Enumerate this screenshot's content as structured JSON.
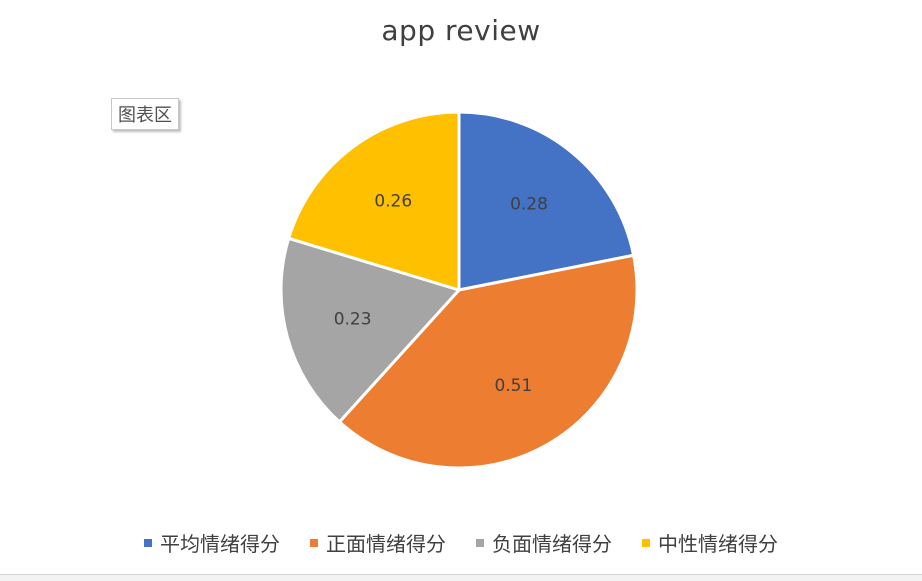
{
  "tooltip": {
    "label": "图表区"
  },
  "chart_data": {
    "type": "pie",
    "title": "app review",
    "categories": [
      "平均情绪得分",
      "正面情绪得分",
      "负面情绪得分",
      "中性情绪得分"
    ],
    "values": [
      0.28,
      0.51,
      0.23,
      0.26
    ],
    "value_labels": [
      "0.28",
      "0.51",
      "0.23",
      "0.26"
    ],
    "colors": [
      "#4472C4",
      "#ED7D31",
      "#A5A5A5",
      "#FFC000"
    ],
    "start_angle_deg": 0,
    "direction": "clockwise",
    "legend": "bottom"
  }
}
